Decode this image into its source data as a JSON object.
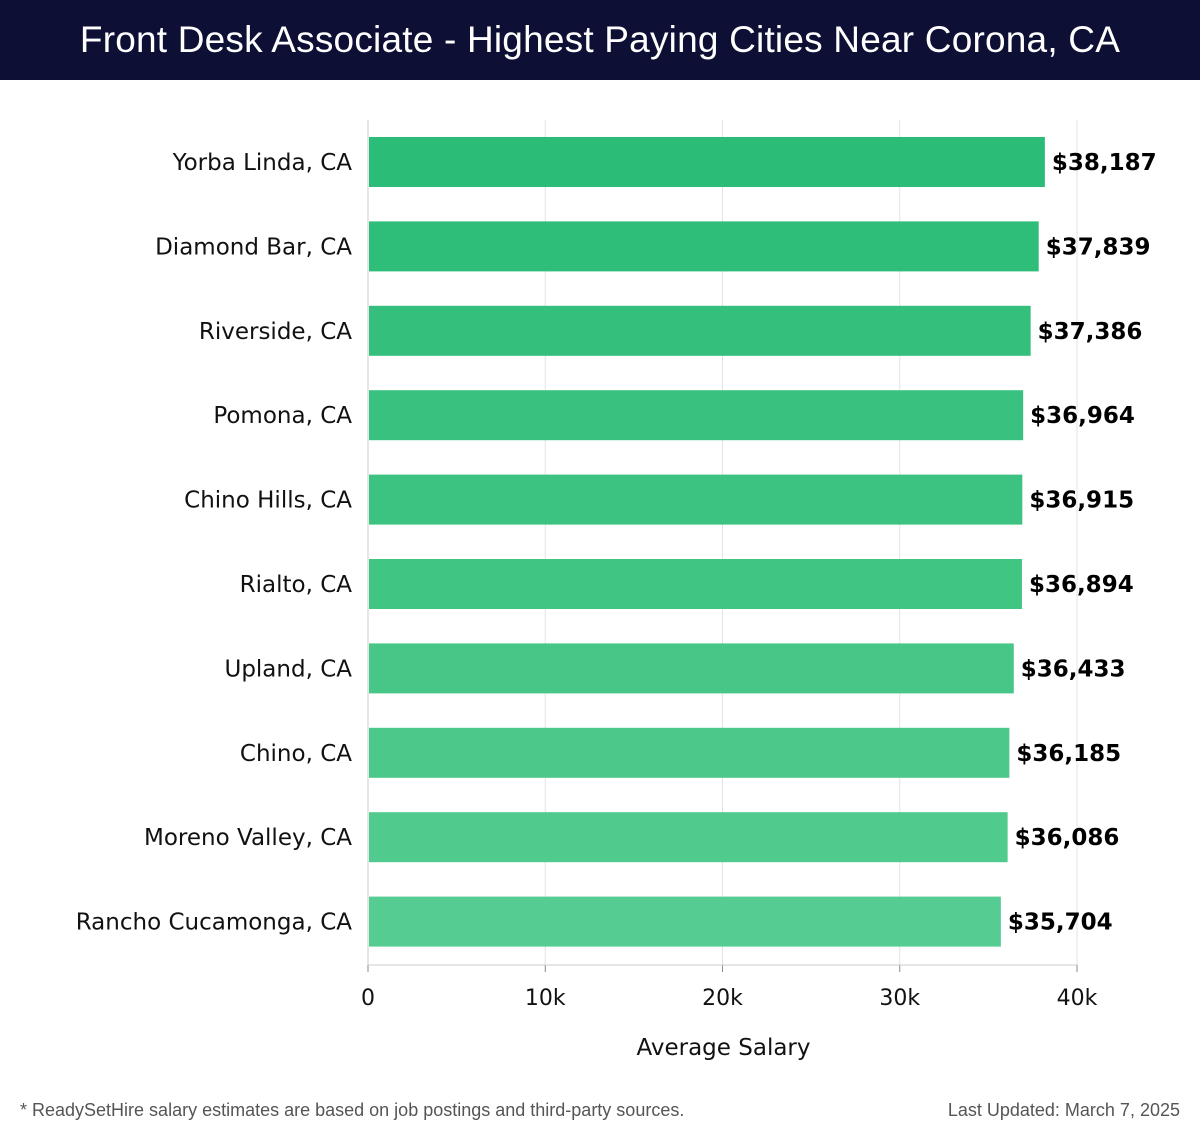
{
  "header": {
    "title": "Front Desk Associate - Highest Paying Cities Near Corona, CA"
  },
  "chart_data": {
    "type": "bar",
    "orientation": "horizontal",
    "title": "Front Desk Associate - Highest Paying Cities Near Corona, CA",
    "xlabel": "Average Salary",
    "ylabel": "",
    "xlim": [
      0,
      40000
    ],
    "xticks": [
      0,
      10000,
      20000,
      30000,
      40000
    ],
    "xtick_labels": [
      "0",
      "10k",
      "20k",
      "30k",
      "40k"
    ],
    "grid": true,
    "categories": [
      "Yorba Linda, CA",
      "Diamond Bar, CA",
      "Riverside, CA",
      "Pomona, CA",
      "Chino Hills, CA",
      "Rialto, CA",
      "Upland, CA",
      "Chino, CA",
      "Moreno Valley, CA",
      "Rancho Cucamonga, CA"
    ],
    "values": [
      38187,
      37839,
      37386,
      36964,
      36915,
      36894,
      36433,
      36185,
      36086,
      35704
    ],
    "value_labels": [
      "$38,187",
      "$37,839",
      "$37,386",
      "$36,964",
      "$36,915",
      "$36,894",
      "$36,433",
      "$36,185",
      "$36,086",
      "$35,704"
    ],
    "bar_colors": [
      "#2bbd77",
      "#2fbe79",
      "#34c07c",
      "#39c27f",
      "#3dc381",
      "#41c583",
      "#47c787",
      "#4cc98a",
      "#50ca8d",
      "#55cc91"
    ]
  },
  "footer": {
    "note": "* ReadySetHire salary estimates are based on job postings and third-party sources.",
    "updated": "Last Updated: March 7, 2025"
  },
  "colors": {
    "header_bg": "#0d0f35",
    "grid": "#e3e3e3",
    "axis": "#cccccc"
  }
}
